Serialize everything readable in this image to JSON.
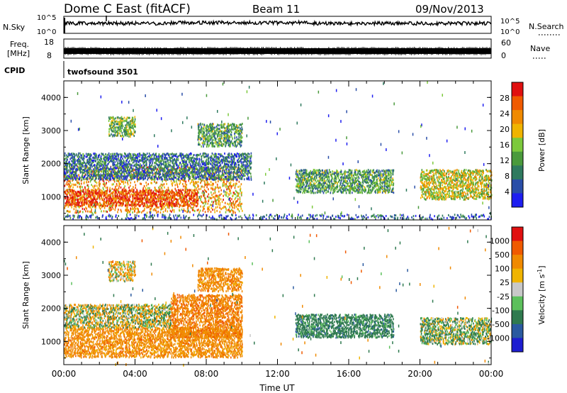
{
  "header": {
    "station": "Dome C East (fitACF)",
    "beam": "Beam 11",
    "date": "09/Nov/2013"
  },
  "panels": {
    "nsky": {
      "label": "N.Sky",
      "ytick_top": "10^5",
      "ytick_bottom": "10^0",
      "right_top": "10^5",
      "right_bottom": "10^0",
      "right_label": "N.Search"
    },
    "freq": {
      "label_line1": "Freq.",
      "label_line2": "[MHz]",
      "ytick_top": "18",
      "ytick_bottom": "8",
      "right_top": "60",
      "right_bottom": "0",
      "right_label": "Nave"
    },
    "cpid": {
      "label": "CPID",
      "program": "twofsound 3501"
    }
  },
  "chart_data": [
    {
      "type": "heatmap",
      "title": "",
      "quantity": "Power",
      "xlabel": "",
      "ylabel": "Slant Range [km]",
      "ylim": [
        300,
        4500
      ],
      "xlim": [
        "00:00",
        "24:00"
      ],
      "y_ticks": [
        "1000",
        "2000",
        "3000",
        "4000"
      ],
      "colorbar": {
        "label": "Power [dB]",
        "range": [
          0,
          32
        ],
        "ticks": [
          "4",
          "8",
          "12",
          "16",
          "20",
          "24",
          "28"
        ],
        "colors": [
          "#1e1ef0",
          "#2a4ea8",
          "#2f7a5f",
          "#4a9a3c",
          "#7cc93c",
          "#f0b400",
          "#f08a00",
          "#f05a00",
          "#e01010"
        ]
      },
      "regions": [
        {
          "t0": 0.0,
          "t1": 10.0,
          "r0": 500,
          "r1": 1900,
          "power_dB": 22,
          "note": "dense main echo band"
        },
        {
          "t0": 0.0,
          "t1": 7.5,
          "r0": 700,
          "r1": 1200,
          "power_dB": 28
        },
        {
          "t0": 0.0,
          "t1": 10.5,
          "r0": 1500,
          "r1": 2300,
          "power_dB": 8
        },
        {
          "t0": 2.5,
          "t1": 4.0,
          "r0": 2800,
          "r1": 3400,
          "power_dB": 14
        },
        {
          "t0": 7.5,
          "t1": 10.0,
          "r0": 2500,
          "r1": 3200,
          "power_dB": 12
        },
        {
          "t0": 13.0,
          "t1": 18.5,
          "r0": 1100,
          "r1": 1800,
          "power_dB": 12
        },
        {
          "t0": 20.0,
          "t1": 24.0,
          "r0": 900,
          "r1": 1800,
          "power_dB": 18
        },
        {
          "t0": 0.0,
          "t1": 24.0,
          "r0": 300,
          "r1": 450,
          "power_dB": 6,
          "note": "ground/near-range scatter"
        }
      ]
    },
    {
      "type": "heatmap",
      "title": "",
      "quantity": "Velocity",
      "xlabel": "Time UT",
      "ylabel": "Slant Range [km]",
      "ylim": [
        300,
        4500
      ],
      "xlim": [
        "00:00",
        "24:00"
      ],
      "x_ticks": [
        "00:00",
        "04:00",
        "08:00",
        "12:00",
        "16:00",
        "20:00",
        "00:00"
      ],
      "y_ticks": [
        "1000",
        "2000",
        "3000",
        "4000"
      ],
      "colorbar": {
        "label": "Velocity [m s^-1]",
        "ticks": [
          "1000",
          "500",
          "100",
          "25",
          "-25",
          "-100",
          "-500",
          "-1000"
        ],
        "colors": [
          "#1e1ed0",
          "#2a5aa0",
          "#2f7a4f",
          "#5cc05c",
          "#c8c8c8",
          "#f0b400",
          "#f08a00",
          "#f05a00",
          "#e01010"
        ]
      },
      "regions": [
        {
          "t0": 0.0,
          "t1": 10.0,
          "r0": 500,
          "r1": 1400,
          "velocity_ms": -300
        },
        {
          "t0": 0.0,
          "t1": 6.0,
          "r0": 1400,
          "r1": 2100,
          "velocity_ms": 0
        },
        {
          "t0": 6.0,
          "t1": 10.0,
          "r0": 1100,
          "r1": 2400,
          "velocity_ms": -400
        },
        {
          "t0": 2.5,
          "t1": 4.0,
          "r0": 2800,
          "r1": 3400,
          "velocity_ms": -100
        },
        {
          "t0": 7.5,
          "t1": 10.0,
          "r0": 2500,
          "r1": 3200,
          "velocity_ms": -300
        },
        {
          "t0": 13.0,
          "t1": 18.5,
          "r0": 1100,
          "r1": 1800,
          "velocity_ms": 300
        },
        {
          "t0": 20.0,
          "t1": 24.0,
          "r0": 900,
          "r1": 1700,
          "velocity_ms": 80
        }
      ]
    }
  ]
}
